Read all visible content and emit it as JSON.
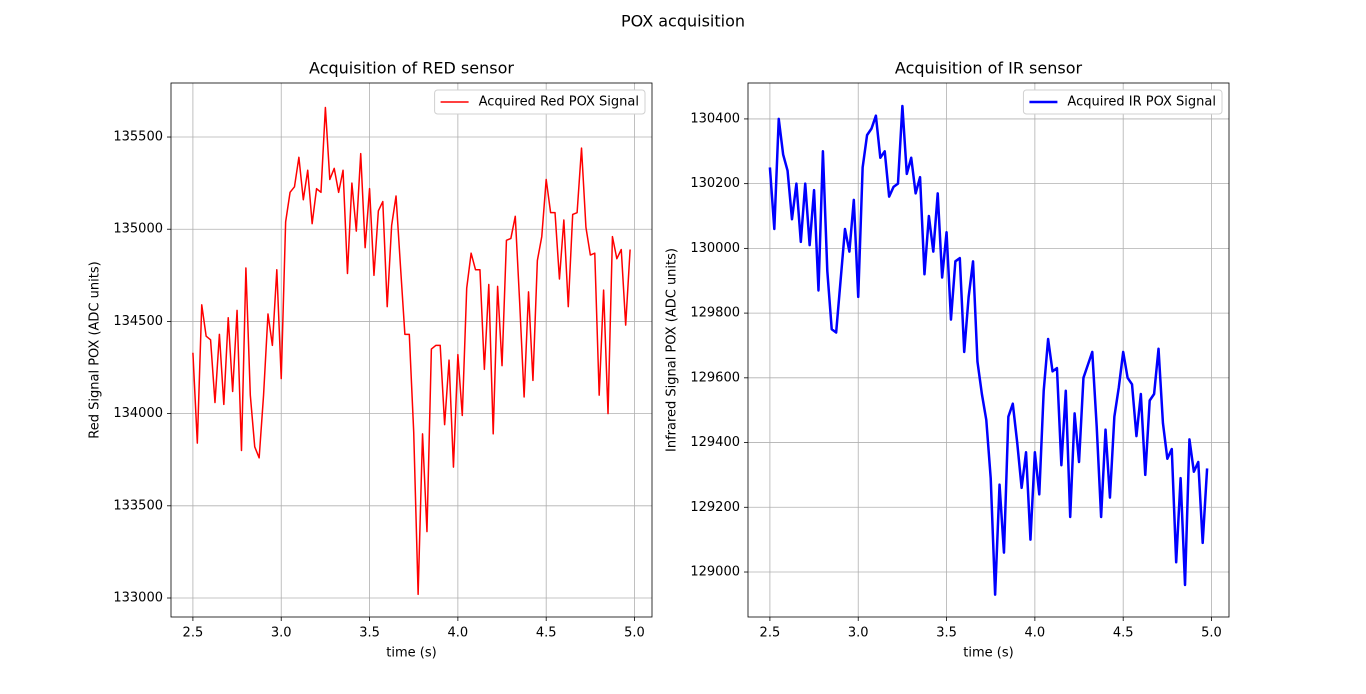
{
  "title": "POX acquisition",
  "chart_data": [
    {
      "type": "line",
      "title": "Acquisition of RED sensor",
      "xlabel": "time (s)",
      "ylabel": "Red Signal POX (ADC units)",
      "x": [
        2.5,
        2.525,
        2.55,
        2.575,
        2.6,
        2.625,
        2.65,
        2.675,
        2.7,
        2.725,
        2.75,
        2.775,
        2.8,
        2.825,
        2.85,
        2.875,
        2.9,
        2.925,
        2.95,
        2.975,
        3.0,
        3.025,
        3.05,
        3.075,
        3.1,
        3.125,
        3.15,
        3.175,
        3.2,
        3.225,
        3.25,
        3.275,
        3.3,
        3.325,
        3.35,
        3.375,
        3.4,
        3.425,
        3.45,
        3.475,
        3.5,
        3.525,
        3.55,
        3.575,
        3.6,
        3.625,
        3.65,
        3.675,
        3.7,
        3.725,
        3.75,
        3.775,
        3.8,
        3.825,
        3.85,
        3.875,
        3.9,
        3.925,
        3.95,
        3.975,
        4.0,
        4.025,
        4.05,
        4.075,
        4.1,
        4.125,
        4.15,
        4.175,
        4.2,
        4.225,
        4.25,
        4.275,
        4.3,
        4.325,
        4.35,
        4.375,
        4.4,
        4.425,
        4.45,
        4.475,
        4.5,
        4.525,
        4.55,
        4.575,
        4.6,
        4.625,
        4.65,
        4.675,
        4.7,
        4.725,
        4.75,
        4.775,
        4.8,
        4.825,
        4.85,
        4.875,
        4.9,
        4.925,
        4.95,
        4.975
      ],
      "series": [
        {
          "name": "Acquired Red POX Signal",
          "color": "#ff0000",
          "values": [
            134330,
            133840,
            134590,
            134420,
            134400,
            134060,
            134430,
            134050,
            134520,
            134120,
            134560,
            133800,
            134790,
            134100,
            133820,
            133760,
            134100,
            134540,
            134370,
            134780,
            134190,
            135040,
            135200,
            135230,
            135390,
            135160,
            135320,
            135030,
            135220,
            135200,
            135660,
            135270,
            135330,
            135200,
            135320,
            134760,
            135250,
            134990,
            135410,
            134900,
            135220,
            134750,
            135100,
            135150,
            134580,
            135020,
            135180,
            134800,
            134430,
            134430,
            133900,
            133020,
            133890,
            133360,
            134350,
            134370,
            134370,
            133940,
            134290,
            133710,
            134320,
            133990,
            134680,
            134870,
            134780,
            134780,
            134240,
            134700,
            133890,
            134690,
            134260,
            134940,
            134950,
            135070,
            134600,
            134090,
            134660,
            134180,
            134830,
            134960,
            135270,
            135090,
            135090,
            134730,
            135050,
            134580,
            135080,
            135090,
            135440,
            135010,
            134860,
            134870,
            134100,
            134670,
            134000,
            134960,
            134840,
            134890,
            134480,
            134890
          ]
        }
      ],
      "xlim": [
        2.376,
        5.099
      ],
      "ylim": [
        132897,
        135793
      ],
      "xticks": [
        2.5,
        {
          "value": 3,
          "label": "3.0"
        },
        3.5,
        {
          "value": 4,
          "label": "4.0"
        },
        4.5,
        {
          "value": 5,
          "label": "5.0"
        }
      ],
      "yticks": [
        133000,
        133500,
        134000,
        134500,
        135000,
        135500
      ],
      "grid": true,
      "legend": "upper right"
    },
    {
      "type": "line",
      "title": "Acquisition of IR sensor",
      "xlabel": "time (s)",
      "ylabel": "Infrared Signal POX (ADC units)",
      "x": [
        2.5,
        2.525,
        2.55,
        2.575,
        2.6,
        2.625,
        2.65,
        2.675,
        2.7,
        2.725,
        2.75,
        2.775,
        2.8,
        2.825,
        2.85,
        2.875,
        2.9,
        2.925,
        2.95,
        2.975,
        3.0,
        3.025,
        3.05,
        3.075,
        3.1,
        3.125,
        3.15,
        3.175,
        3.2,
        3.225,
        3.25,
        3.275,
        3.3,
        3.325,
        3.35,
        3.375,
        3.4,
        3.425,
        3.45,
        3.475,
        3.5,
        3.525,
        3.55,
        3.575,
        3.6,
        3.625,
        3.65,
        3.675,
        3.7,
        3.725,
        3.75,
        3.775,
        3.8,
        3.825,
        3.85,
        3.875,
        3.9,
        3.925,
        3.95,
        3.975,
        4.0,
        4.025,
        4.05,
        4.075,
        4.1,
        4.125,
        4.15,
        4.175,
        4.2,
        4.225,
        4.25,
        4.275,
        4.3,
        4.325,
        4.35,
        4.375,
        4.4,
        4.425,
        4.45,
        4.475,
        4.5,
        4.525,
        4.55,
        4.575,
        4.6,
        4.625,
        4.65,
        4.675,
        4.7,
        4.725,
        4.75,
        4.775,
        4.8,
        4.825,
        4.85,
        4.875,
        4.9,
        4.925,
        4.95,
        4.975
      ],
      "series": [
        {
          "name": "Acquired IR POX Signal",
          "color": "#0000ff",
          "values": [
            130250,
            130060,
            130400,
            130290,
            130240,
            130090,
            130200,
            130020,
            130200,
            130010,
            130180,
            129870,
            130300,
            129930,
            129750,
            129740,
            129900,
            130060,
            129990,
            130150,
            129850,
            130250,
            130350,
            130370,
            130410,
            130280,
            130300,
            130160,
            130190,
            130200,
            130440,
            130230,
            130280,
            130170,
            130220,
            129920,
            130100,
            129990,
            130170,
            129910,
            130050,
            129780,
            129960,
            129970,
            129680,
            129850,
            129960,
            129650,
            129550,
            129470,
            129290,
            128930,
            129270,
            129060,
            129480,
            129520,
            129400,
            129260,
            129370,
            129100,
            129370,
            129240,
            129560,
            129720,
            129620,
            129630,
            129330,
            129560,
            129170,
            129490,
            129340,
            129600,
            129640,
            129680,
            129450,
            129170,
            129440,
            129230,
            129480,
            129570,
            129680,
            129600,
            129580,
            129420,
            129550,
            129300,
            129530,
            129550,
            129690,
            129460,
            129350,
            129380,
            129030,
            129290,
            128960,
            129410,
            129310,
            129340,
            129090,
            129320
          ]
        }
      ],
      "xlim": [
        2.376,
        5.099
      ],
      "ylim": [
        128861,
        130511
      ],
      "xticks": [
        2.5,
        {
          "value": 3,
          "label": "3.0"
        },
        3.5,
        {
          "value": 4,
          "label": "4.0"
        },
        4.5,
        {
          "value": 5,
          "label": "5.0"
        }
      ],
      "yticks": [
        129000,
        129200,
        129400,
        129600,
        129800,
        130000,
        130200,
        130400
      ],
      "grid": true,
      "legend": "upper right"
    }
  ]
}
